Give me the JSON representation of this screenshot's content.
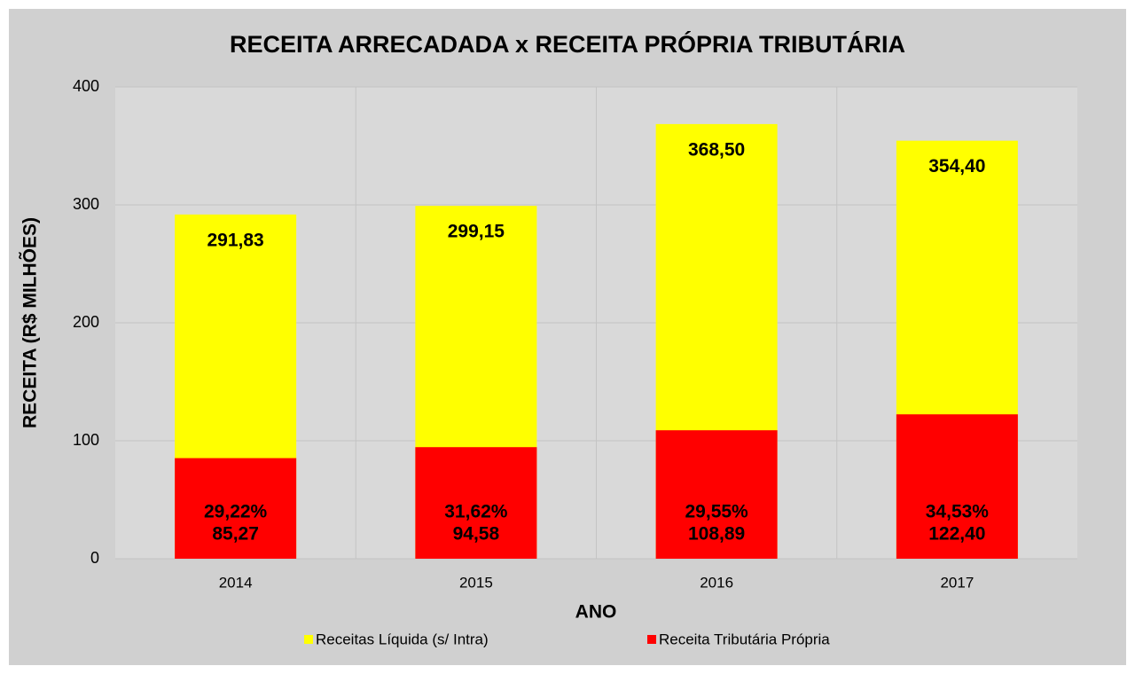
{
  "chart_data": {
    "type": "bar",
    "title": "RECEITA ARRECADADA x RECEITA PRÓPRIA TRIBUTÁRIA",
    "x_label": "ANO",
    "y_label": "RECEITA (R$ MILHÕES)",
    "categories": [
      "2014",
      "2015",
      "2016",
      "2017"
    ],
    "series": [
      {
        "name": "Receitas Líquida (s/ Intra)",
        "color": "#ffff00",
        "values": [
          291.83,
          299.15,
          368.5,
          354.4
        ],
        "value_labels": [
          "291,83",
          "299,15",
          "368,50",
          "354,40"
        ]
      },
      {
        "name": "Receita Tributária Própria",
        "color": "#ff0000",
        "values": [
          85.27,
          94.58,
          108.89,
          122.4
        ],
        "value_labels": [
          "85,27",
          "94,58",
          "108,89",
          "122,40"
        ],
        "percent_labels": [
          "29,22%",
          "31,62%",
          "29,55%",
          "34,53%"
        ]
      }
    ],
    "ylim": [
      0,
      400
    ],
    "yticks": [
      0,
      100,
      200,
      300,
      400
    ],
    "grid": true,
    "legend": "bottom"
  }
}
